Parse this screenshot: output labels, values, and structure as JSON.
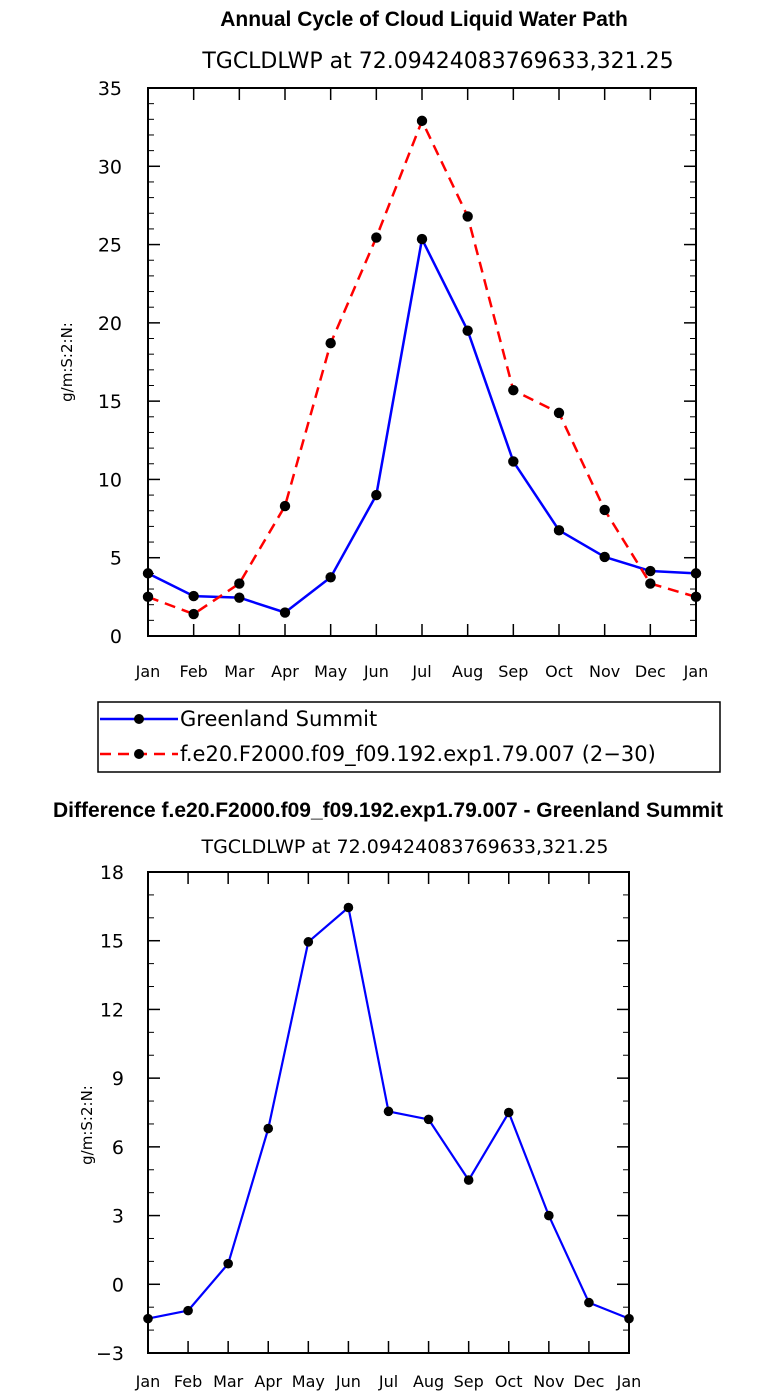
{
  "chart_data": [
    {
      "type": "line",
      "title": "Annual Cycle of Cloud Liquid Water Path",
      "subtitle": "TGCLDLWP  at  72.09424083769633,321.25",
      "ylabel": "g/m:S:2:N:",
      "xlabel": "",
      "categories": [
        "Jan",
        "Feb",
        "Mar",
        "Apr",
        "May",
        "Jun",
        "Jul",
        "Aug",
        "Sep",
        "Oct",
        "Nov",
        "Dec",
        "Jan"
      ],
      "ylim": [
        0,
        35
      ],
      "yticks": [
        "0",
        "5",
        "10",
        "15",
        "20",
        "25",
        "30",
        "35"
      ],
      "legend_position": "bottom",
      "series": [
        {
          "name": "Greenland Summit",
          "color": "#0000ff",
          "dash": "solid",
          "values": [
            4.0,
            2.55,
            2.45,
            1.5,
            3.75,
            9.0,
            25.35,
            19.5,
            11.15,
            6.75,
            5.05,
            4.15,
            4.0
          ]
        },
        {
          "name": "f.e20.F2000.f09_f09.192.exp1.79.007 (2−30)",
          "color": "#ff0000",
          "dash": "dashed",
          "values": [
            2.5,
            1.4,
            3.35,
            8.3,
            18.7,
            25.45,
            32.9,
            26.8,
            15.7,
            14.25,
            8.05,
            3.35,
            2.5
          ]
        }
      ]
    },
    {
      "type": "line",
      "title": "Difference f.e20.F2000.f09_f09.192.exp1.79.007 - Greenland Summit",
      "subtitle": "TGCLDLWP  at  72.09424083769633,321.25",
      "ylabel": "g/m:S:2:N:",
      "xlabel": "",
      "categories": [
        "Jan",
        "Feb",
        "Mar",
        "Apr",
        "May",
        "Jun",
        "Jul",
        "Aug",
        "Sep",
        "Oct",
        "Nov",
        "Dec",
        "Jan"
      ],
      "ylim": [
        -3,
        18
      ],
      "yticks": [
        "−3",
        "0",
        "3",
        "6",
        "9",
        "12",
        "15",
        "18"
      ],
      "series": [
        {
          "name": "Difference",
          "color": "#0000ff",
          "dash": "solid",
          "values": [
            -1.5,
            -1.15,
            0.9,
            6.8,
            14.95,
            16.45,
            7.55,
            7.2,
            4.55,
            7.5,
            3.0,
            -0.8,
            -1.5
          ]
        }
      ]
    }
  ]
}
